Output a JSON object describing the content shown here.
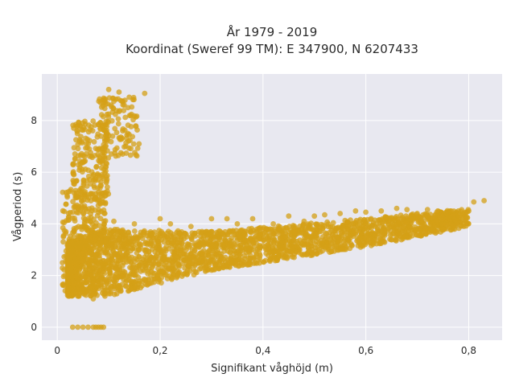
{
  "chart_data": {
    "type": "scatter",
    "title_lines": [
      "År 1979 - 2019",
      "Koordinat (Sweref 99 TM): E 347900, N 6207433"
    ],
    "xlabel": "Signifikant våghöjd (m)",
    "ylabel": "Vågperiod (s)",
    "xlim": [
      -0.03,
      0.865
    ],
    "ylim": [
      -0.5,
      9.8
    ],
    "xticks": [
      0,
      0.2,
      0.4,
      0.6,
      0.8
    ],
    "xtick_labels": [
      "0",
      "0,2",
      "0,4",
      "0,6",
      "0,8"
    ],
    "yticks": [
      0,
      2,
      4,
      6,
      8
    ],
    "ytick_labels": [
      "0",
      "2",
      "4",
      "6",
      "8"
    ],
    "grid": true,
    "marker_color": "#d4a017",
    "plot_bg": "#e8e8f0",
    "point_clusters": [
      {
        "x_range": [
          0.03,
          0.095
        ],
        "y_range": [
          3.2,
          5.2
        ],
        "n": 160
      },
      {
        "x_range": [
          0.01,
          0.03
        ],
        "y_range": [
          1.2,
          5.4
        ],
        "n": 60
      },
      {
        "x_range": [
          0.03,
          0.1
        ],
        "y_range": [
          5.0,
          8.0
        ],
        "n": 200
      },
      {
        "x_range": [
          0.08,
          0.16
        ],
        "y_range": [
          6.6,
          8.9
        ],
        "n": 120
      }
    ],
    "main_band": {
      "x_range": [
        0.02,
        0.8
      ],
      "lower": {
        "x": [
          0.02,
          0.1,
          0.3,
          0.6,
          0.8
        ],
        "y": [
          1.2,
          1.2,
          2.2,
          3.1,
          3.9
        ]
      },
      "upper": {
        "x": [
          0.02,
          0.1,
          0.3,
          0.6,
          0.8
        ],
        "y": [
          3.3,
          3.8,
          3.7,
          4.2,
          4.6
        ]
      },
      "n": 2600
    },
    "points": [
      [
        0.03,
        0.0
      ],
      [
        0.04,
        0.0
      ],
      [
        0.05,
        0.0
      ],
      [
        0.06,
        0.0
      ],
      [
        0.07,
        0.0
      ],
      [
        0.075,
        0.0
      ],
      [
        0.08,
        0.0
      ],
      [
        0.085,
        0.0
      ],
      [
        0.09,
        0.0
      ],
      [
        0.1,
        9.2
      ],
      [
        0.12,
        9.1
      ],
      [
        0.14,
        8.9
      ],
      [
        0.17,
        9.05
      ],
      [
        0.13,
        8.6
      ],
      [
        0.11,
        4.1
      ],
      [
        0.15,
        4.0
      ],
      [
        0.2,
        4.2
      ],
      [
        0.22,
        4.0
      ],
      [
        0.26,
        3.9
      ],
      [
        0.3,
        4.2
      ],
      [
        0.33,
        4.2
      ],
      [
        0.35,
        4.0
      ],
      [
        0.38,
        4.2
      ],
      [
        0.42,
        4.0
      ],
      [
        0.45,
        4.3
      ],
      [
        0.48,
        4.1
      ],
      [
        0.5,
        4.3
      ],
      [
        0.52,
        4.35
      ],
      [
        0.55,
        4.4
      ],
      [
        0.58,
        4.5
      ],
      [
        0.6,
        4.45
      ],
      [
        0.63,
        4.5
      ],
      [
        0.66,
        4.6
      ],
      [
        0.68,
        4.55
      ],
      [
        0.7,
        4.4
      ],
      [
        0.72,
        4.55
      ],
      [
        0.74,
        4.5
      ],
      [
        0.76,
        4.45
      ],
      [
        0.77,
        4.3
      ],
      [
        0.78,
        4.5
      ],
      [
        0.81,
        4.85
      ],
      [
        0.83,
        4.9
      ],
      [
        0.79,
        4.4
      ],
      [
        0.8,
        4.5
      ],
      [
        0.12,
        1.6
      ],
      [
        0.1,
        1.3
      ],
      [
        0.07,
        1.1
      ]
    ]
  }
}
